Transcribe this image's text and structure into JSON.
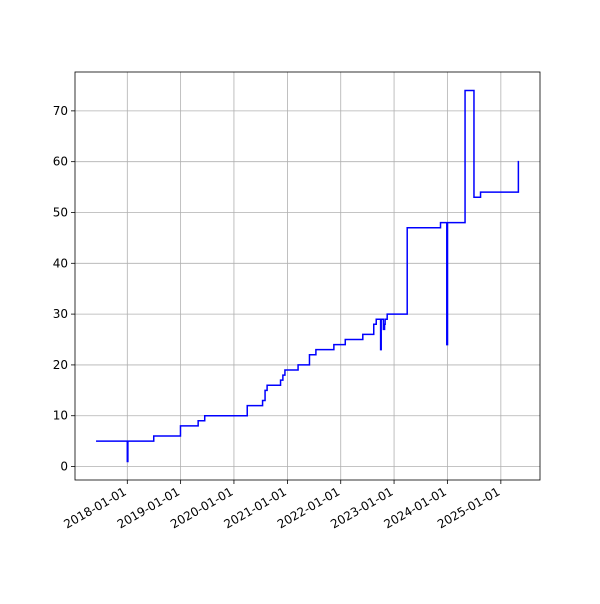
{
  "chart_data": {
    "type": "line",
    "step": "post",
    "color": "#0000ff",
    "grid": true,
    "x": [
      "2017-06-01",
      "2018-01-01",
      "2018-01-05",
      "2018-07-01",
      "2018-12-31",
      "2019-05-01",
      "2019-06-15",
      "2020-04-01",
      "2020-07-15",
      "2020-08-01",
      "2020-08-15",
      "2020-11-15",
      "2020-12-01",
      "2020-12-15",
      "2021-03-15",
      "2021-06-01",
      "2021-07-15",
      "2021-11-15",
      "2022-02-01",
      "2022-06-01",
      "2022-08-15",
      "2022-09-01",
      "2022-10-01",
      "2022-10-05",
      "2022-10-20",
      "2022-10-28",
      "2022-11-01",
      "2022-11-15",
      "2023-04-01",
      "2023-11-15",
      "2023-12-28",
      "2024-01-02",
      "2024-05-01",
      "2024-07-01",
      "2024-08-15",
      "2025-05-01",
      "2025-05-05"
    ],
    "values": [
      5,
      1,
      5,
      6,
      8,
      9,
      10,
      12,
      13,
      15,
      16,
      17,
      18,
      19,
      20,
      22,
      23,
      24,
      25,
      26,
      28,
      29,
      23,
      29,
      27,
      28,
      29,
      30,
      47,
      48,
      24,
      48,
      74,
      53,
      54,
      60,
      60
    ],
    "xlim": [
      "2017-01-08",
      "2025-09-26"
    ],
    "xticks": [
      "2018-01-01",
      "2019-01-01",
      "2020-01-01",
      "2021-01-01",
      "2022-01-01",
      "2023-01-01",
      "2024-01-01",
      "2025-01-01"
    ],
    "ylim": [
      -2.65,
      77.65
    ],
    "yticks": [
      0,
      10,
      20,
      30,
      40,
      50,
      60,
      70
    ]
  }
}
